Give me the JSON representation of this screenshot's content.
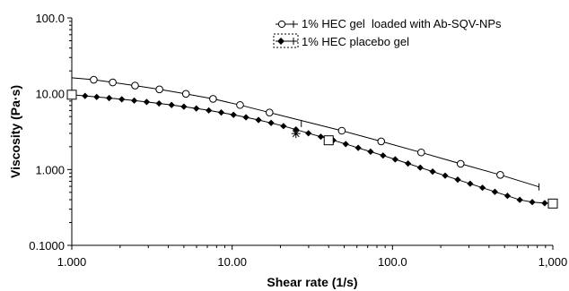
{
  "chart_data": {
    "type": "line",
    "title": "",
    "xlabel": "Shear rate (1/s)",
    "ylabel": "Viscosity (Pa·s)",
    "x_scale": "log",
    "y_scale": "log",
    "xlim": [
      1,
      1000
    ],
    "ylim": [
      0.1,
      100
    ],
    "x_ticks": [
      {
        "value": 1,
        "label": "1.000"
      },
      {
        "value": 10,
        "label": "10.00"
      },
      {
        "value": 100,
        "label": "100.0"
      },
      {
        "value": 1000,
        "label": "1,000"
      }
    ],
    "y_ticks": [
      {
        "value": 0.1,
        "label": "0.1000"
      },
      {
        "value": 1,
        "label": "1.000"
      },
      {
        "value": 10,
        "label": "10.00"
      },
      {
        "value": 100,
        "label": "100.0"
      }
    ],
    "grid": false,
    "legend_position": "top-right",
    "series": [
      {
        "name": "1% HEC gel  loaded with Ab-SQV-NPs",
        "marker": "open-circle",
        "color": "#000000",
        "x": [
          1.37,
          1.8,
          2.48,
          3.52,
          5.15,
          7.6,
          11.2,
          17.1,
          48.3,
          85.0,
          151,
          266,
          470
        ],
        "y": [
          15.3,
          14.1,
          12.8,
          11.4,
          9.95,
          8.55,
          7.1,
          5.65,
          3.25,
          2.35,
          1.68,
          1.19,
          0.85
        ]
      },
      {
        "name": "1% HEC placebo gel",
        "marker": "filled-diamond",
        "color": "#000000",
        "x": [
          1.0,
          1.21,
          1.43,
          1.71,
          2.05,
          2.45,
          2.93,
          3.5,
          4.19,
          5.0,
          5.98,
          7.15,
          8.55,
          10.2,
          12.2,
          14.6,
          17.5,
          20.9,
          25.0,
          29.9,
          35.7,
          42.7,
          51.1,
          61.1,
          73.0,
          87.3,
          104,
          125,
          149,
          178,
          213,
          255,
          305,
          364,
          435,
          521,
          622,
          744,
          889,
          1000
        ],
        "y": [
          9.7,
          9.36,
          9.06,
          8.76,
          8.45,
          8.12,
          7.78,
          7.44,
          7.1,
          6.75,
          6.39,
          6.02,
          5.65,
          5.27,
          4.89,
          4.5,
          4.12,
          3.74,
          3.37,
          3.01,
          2.71,
          2.43,
          2.17,
          1.93,
          1.72,
          1.53,
          1.36,
          1.2,
          1.06,
          0.94,
          0.83,
          0.735,
          0.65,
          0.575,
          0.508,
          0.45,
          0.398,
          0.372,
          0.36,
          0.356
        ]
      }
    ],
    "annotations": [
      {
        "type": "open-square",
        "x": 1.0,
        "y": 9.7
      },
      {
        "type": "open-square",
        "x": 40.0,
        "y": 2.43
      },
      {
        "type": "open-square",
        "x": 1000,
        "y": 0.356
      },
      {
        "type": "asterisk",
        "x": 25.0,
        "y": 2.98
      },
      {
        "type": "tick-mark",
        "x": 27.0,
        "y": 4.05
      },
      {
        "type": "tick-mark",
        "x": 820,
        "y": 0.59
      }
    ]
  }
}
